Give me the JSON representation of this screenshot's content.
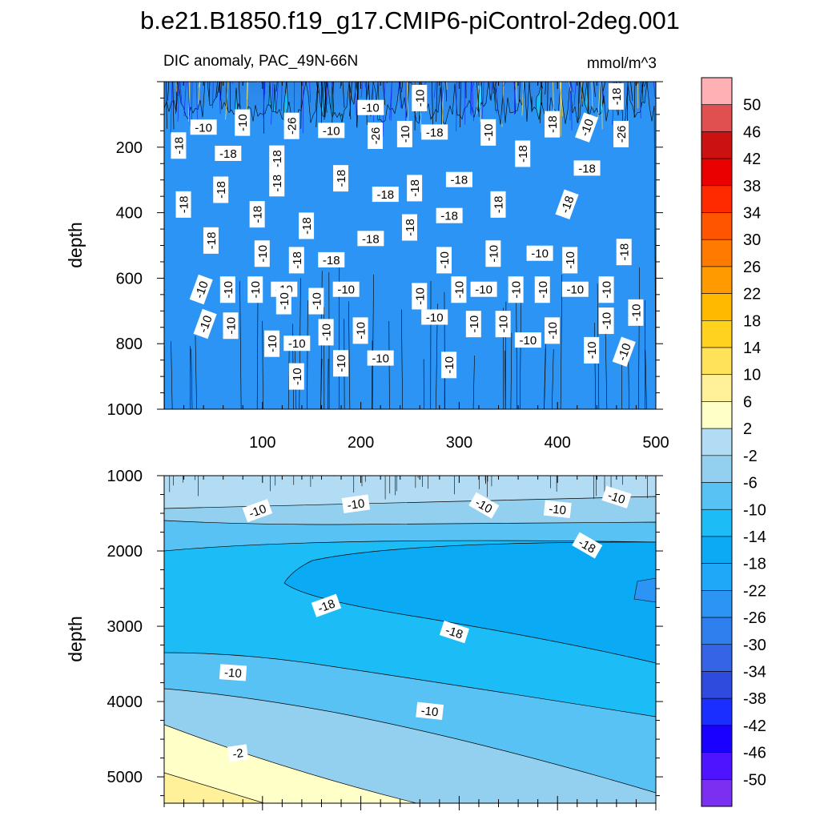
{
  "chart_data": {
    "type": "contour",
    "title": "b.e21.B1850.f19_g17.CMIP6-piControl-2deg.001",
    "subtitle_left": "DIC anomaly, PAC_49N-66N",
    "subtitle_right": "mmol/m^3",
    "colorbar": {
      "levels": [
        -50,
        -46,
        -42,
        -38,
        -34,
        -30,
        -26,
        -22,
        -18,
        -14,
        -10,
        -6,
        -2,
        2,
        6,
        10,
        14,
        18,
        22,
        26,
        30,
        34,
        38,
        42,
        46,
        50
      ],
      "labels": [
        "50",
        "46",
        "42",
        "38",
        "34",
        "30",
        "26",
        "22",
        "18",
        "14",
        "10",
        "6",
        "2",
        "-2",
        "-6",
        "-10",
        "-14",
        "-18",
        "-22",
        "-26",
        "-30",
        "-34",
        "-38",
        "-42",
        "-46",
        "-50"
      ],
      "colors": [
        "#7b2ff0",
        "#4f14ff",
        "#1a00ff",
        "#1a2fff",
        "#2e4bdd",
        "#3664e6",
        "#2f7fee",
        "#2b94f5",
        "#1ea8f7",
        "#0baaf4",
        "#1cbdf7",
        "#57c2f3",
        "#93d0ef",
        "#b1dcf4",
        "#ffffc8",
        "#fff09a",
        "#ffe25a",
        "#ffd21f",
        "#ffba00",
        "#ff9b00",
        "#ff7a00",
        "#ff5400",
        "#ff2a00",
        "#ea0000",
        "#cc1111",
        "#e05050",
        "#ffb0b5"
      ]
    },
    "panels": [
      {
        "name": "upper-panel",
        "ylabel": "depth",
        "xlim": [
          0,
          500
        ],
        "ylim": [
          1000,
          0
        ],
        "xticks": [
          100,
          200,
          300,
          400,
          500
        ],
        "yticks": [
          200,
          400,
          600,
          800,
          1000
        ],
        "contour_labels": [
          {
            "x": 210,
            "y": 80,
            "label": "-10"
          },
          {
            "x": 260,
            "y": 50,
            "label": "-10"
          },
          {
            "x": 460,
            "y": 45,
            "label": "-18"
          },
          {
            "x": 40,
            "y": 140,
            "label": "-10"
          },
          {
            "x": 80,
            "y": 125,
            "label": "-10"
          },
          {
            "x": 130,
            "y": 135,
            "label": "-26"
          },
          {
            "x": 170,
            "y": 150,
            "label": "-10"
          },
          {
            "x": 215,
            "y": 165,
            "label": "-26"
          },
          {
            "x": 245,
            "y": 160,
            "label": "-10"
          },
          {
            "x": 275,
            "y": 155,
            "label": "-18"
          },
          {
            "x": 330,
            "y": 155,
            "label": "-10"
          },
          {
            "x": 395,
            "y": 130,
            "label": "-18"
          },
          {
            "x": 430,
            "y": 140,
            "label": "-10"
          },
          {
            "x": 465,
            "y": 160,
            "label": "-26"
          },
          {
            "x": 15,
            "y": 195,
            "label": "-18"
          },
          {
            "x": 65,
            "y": 220,
            "label": "-18"
          },
          {
            "x": 115,
            "y": 235,
            "label": "-18"
          },
          {
            "x": 365,
            "y": 220,
            "label": "-18"
          },
          {
            "x": 430,
            "y": 265,
            "label": "-18"
          },
          {
            "x": 115,
            "y": 310,
            "label": "-18"
          },
          {
            "x": 180,
            "y": 295,
            "label": "-18"
          },
          {
            "x": 300,
            "y": 300,
            "label": "-18"
          },
          {
            "x": 255,
            "y": 325,
            "label": "-18"
          },
          {
            "x": 58,
            "y": 330,
            "label": "-18"
          },
          {
            "x": 225,
            "y": 345,
            "label": "-18"
          },
          {
            "x": 20,
            "y": 375,
            "label": "-18"
          },
          {
            "x": 340,
            "y": 375,
            "label": "-18"
          },
          {
            "x": 410,
            "y": 375,
            "label": "-18"
          },
          {
            "x": 95,
            "y": 405,
            "label": "-18"
          },
          {
            "x": 145,
            "y": 440,
            "label": "-18"
          },
          {
            "x": 290,
            "y": 410,
            "label": "-18"
          },
          {
            "x": 250,
            "y": 445,
            "label": "-18"
          },
          {
            "x": 48,
            "y": 485,
            "label": "-18"
          },
          {
            "x": 210,
            "y": 480,
            "label": "-18"
          },
          {
            "x": 100,
            "y": 525,
            "label": "-10"
          },
          {
            "x": 135,
            "y": 545,
            "label": "-18"
          },
          {
            "x": 170,
            "y": 545,
            "label": "-18"
          },
          {
            "x": 285,
            "y": 545,
            "label": "-10"
          },
          {
            "x": 335,
            "y": 525,
            "label": "-10"
          },
          {
            "x": 382,
            "y": 525,
            "label": "-10"
          },
          {
            "x": 413,
            "y": 545,
            "label": "-10"
          },
          {
            "x": 468,
            "y": 520,
            "label": "-18"
          },
          {
            "x": 38,
            "y": 635,
            "label": "-10"
          },
          {
            "x": 65,
            "y": 635,
            "label": "-10"
          },
          {
            "x": 93,
            "y": 635,
            "label": "-10"
          },
          {
            "x": 122,
            "y": 635,
            "label": "-10"
          },
          {
            "x": 122,
            "y": 670,
            "label": "-10"
          },
          {
            "x": 155,
            "y": 670,
            "label": "-10"
          },
          {
            "x": 185,
            "y": 635,
            "label": "-10"
          },
          {
            "x": 260,
            "y": 655,
            "label": "-10"
          },
          {
            "x": 300,
            "y": 635,
            "label": "-10"
          },
          {
            "x": 325,
            "y": 635,
            "label": "-10"
          },
          {
            "x": 358,
            "y": 635,
            "label": "-10"
          },
          {
            "x": 385,
            "y": 635,
            "label": "-10"
          },
          {
            "x": 418,
            "y": 635,
            "label": "-10"
          },
          {
            "x": 450,
            "y": 635,
            "label": "-10"
          },
          {
            "x": 480,
            "y": 705,
            "label": "-10"
          },
          {
            "x": 42,
            "y": 740,
            "label": "-10"
          },
          {
            "x": 68,
            "y": 745,
            "label": "-10"
          },
          {
            "x": 110,
            "y": 800,
            "label": "-10"
          },
          {
            "x": 135,
            "y": 800,
            "label": "-10"
          },
          {
            "x": 165,
            "y": 765,
            "label": "-10"
          },
          {
            "x": 200,
            "y": 760,
            "label": "-10"
          },
          {
            "x": 275,
            "y": 720,
            "label": "-10"
          },
          {
            "x": 315,
            "y": 740,
            "label": "-10"
          },
          {
            "x": 345,
            "y": 740,
            "label": "-10"
          },
          {
            "x": 370,
            "y": 790,
            "label": "-10"
          },
          {
            "x": 395,
            "y": 760,
            "label": "-10"
          },
          {
            "x": 450,
            "y": 730,
            "label": "-10"
          },
          {
            "x": 220,
            "y": 845,
            "label": "-10"
          },
          {
            "x": 290,
            "y": 865,
            "label": "-10"
          },
          {
            "x": 435,
            "y": 820,
            "label": "-10"
          },
          {
            "x": 468,
            "y": 825,
            "label": "-10"
          },
          {
            "x": 135,
            "y": 900,
            "label": "-10"
          },
          {
            "x": 180,
            "y": 860,
            "label": "-10"
          }
        ]
      },
      {
        "name": "lower-panel",
        "ylabel": "depth",
        "xlim": [
          0,
          500
        ],
        "ylim": [
          5350,
          1000
        ],
        "xticks": [
          100,
          200,
          300,
          400,
          500
        ],
        "yticks": [
          1000,
          2000,
          3000,
          4000,
          5000
        ],
        "contour_labels": [
          {
            "x": 95,
            "y": 1470,
            "label": "-10"
          },
          {
            "x": 195,
            "y": 1380,
            "label": "-10"
          },
          {
            "x": 325,
            "y": 1400,
            "label": "-10"
          },
          {
            "x": 400,
            "y": 1450,
            "label": "-10"
          },
          {
            "x": 460,
            "y": 1290,
            "label": "-10"
          },
          {
            "x": 430,
            "y": 1930,
            "label": "-18"
          },
          {
            "x": 165,
            "y": 2730,
            "label": "-18"
          },
          {
            "x": 295,
            "y": 3080,
            "label": "-18"
          },
          {
            "x": 70,
            "y": 3620,
            "label": "-10"
          },
          {
            "x": 270,
            "y": 4130,
            "label": "-10"
          },
          {
            "x": 75,
            "y": 4690,
            "label": "-2"
          }
        ]
      }
    ]
  }
}
